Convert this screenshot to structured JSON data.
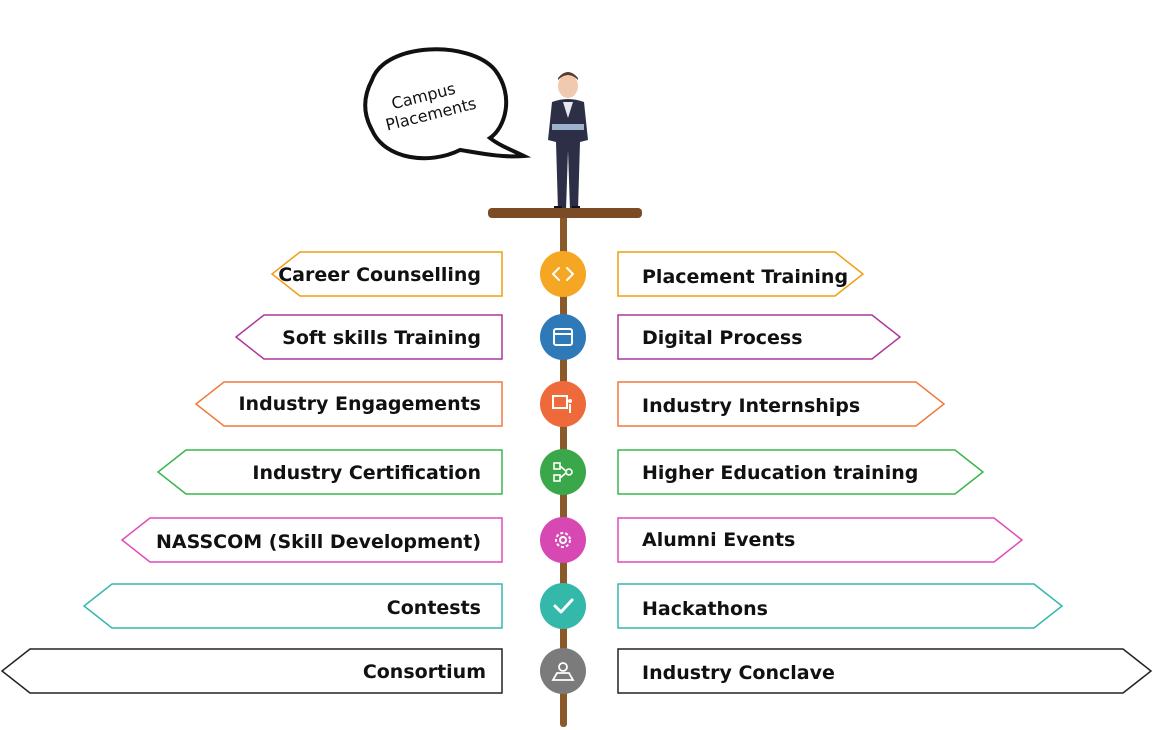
{
  "speech_bubble": {
    "line1": "Campus",
    "line2": "Placements"
  },
  "rows": [
    {
      "left": "Career Counselling",
      "right": "Placement Training",
      "color": "#f39c12",
      "icon": "code-brackets-icon"
    },
    {
      "left": "Soft skills Training",
      "right": "Digital Process",
      "color": "#b0359c",
      "icon": "calendar-icon"
    },
    {
      "left": "Industry Engagements",
      "right": "Industry Internships",
      "color": "#f07a3d",
      "icon": "presentation-board-icon"
    },
    {
      "left": "Industry  Certification",
      "right": "Higher Education training",
      "color": "#3ab54a",
      "icon": "flowchart-icon"
    },
    {
      "left": "NASSCOM  (Skill Development)",
      "right": "Alumni Events",
      "color": "#e049b8",
      "icon": "gear-icon"
    },
    {
      "left": "Contests",
      "right": "Hackathons",
      "color": "#36b7ad",
      "icon": "checkmark-icon"
    },
    {
      "left": "Consortium",
      "right": "Industry Conclave",
      "color": "#222222",
      "icon": "user-map-icon"
    }
  ],
  "circle_colors": [
    "#f5a623",
    "#2e7ab8",
    "#ef6a3a",
    "#3aa84a",
    "#d848b3",
    "#34b8aa",
    "#7b7b7b"
  ]
}
